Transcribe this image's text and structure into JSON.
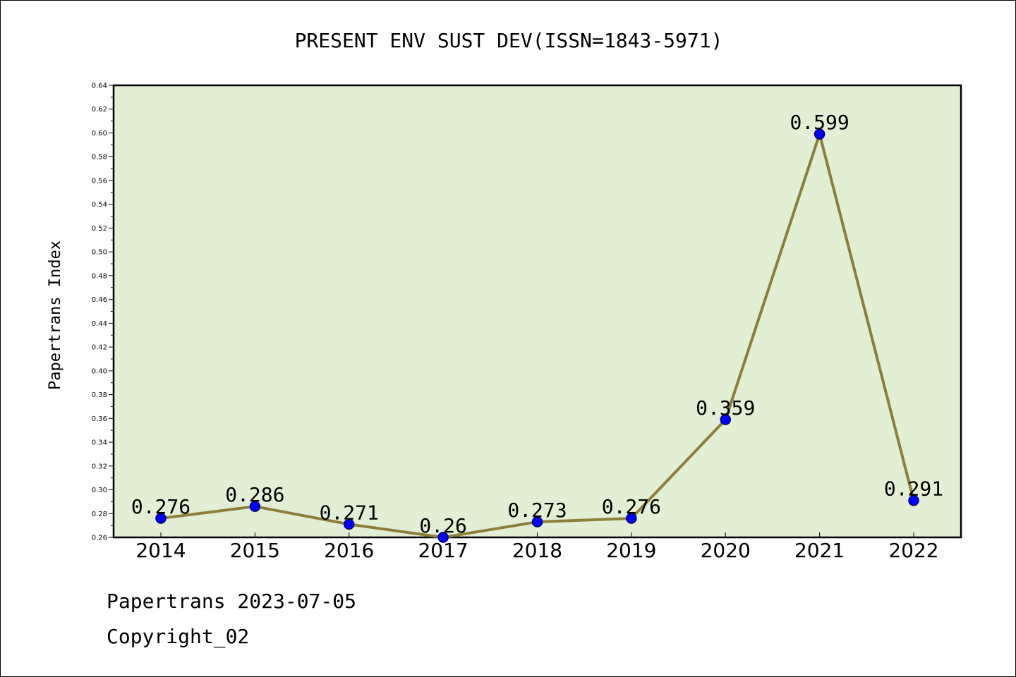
{
  "chart_data": {
    "type": "line",
    "title": "PRESENT ENV SUST DEV(ISSN=1843-5971)",
    "xlabel": "",
    "ylabel": "Papertrans Index",
    "categories": [
      "2014",
      "2015",
      "2016",
      "2017",
      "2018",
      "2019",
      "2020",
      "2021",
      "2022"
    ],
    "series": [
      {
        "values": [
          0.276,
          0.286,
          0.271,
          0.26,
          0.273,
          0.276,
          0.359,
          0.599,
          0.291
        ],
        "labels": [
          "0.276",
          "0.286",
          "0.271",
          "0.26",
          "0.273",
          "0.276",
          "0.359",
          "0.599",
          "0.291"
        ]
      }
    ],
    "ylim": [
      0.26,
      0.64
    ],
    "yticks": [
      "0.26",
      "0.28",
      "0.30",
      "0.32",
      "0.34",
      "0.36",
      "0.38",
      "0.40",
      "0.42",
      "0.44",
      "0.46",
      "0.48",
      "0.50",
      "0.52",
      "0.54",
      "0.56",
      "0.58",
      "0.60",
      "0.62",
      "0.64"
    ],
    "grid": false,
    "legend": "none",
    "colors": {
      "plot_background": "#e2efd5",
      "line": "#8c7f3a",
      "marker_fill": "#0000ff",
      "marker_stroke": "#000066"
    }
  },
  "footer": {
    "line1": "Papertrans 2023-07-05",
    "line2": "Copyright_02"
  }
}
